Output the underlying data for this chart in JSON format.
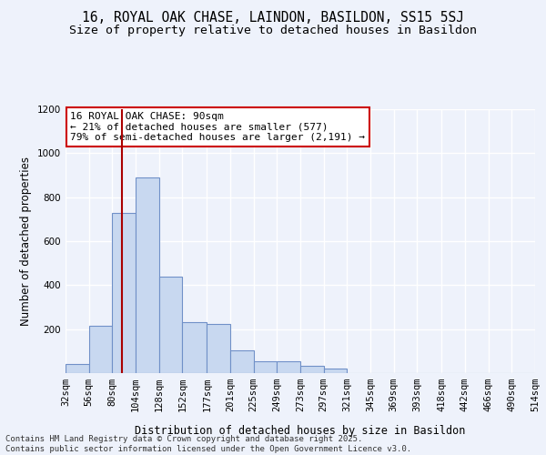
{
  "title1": "16, ROYAL OAK CHASE, LAINDON, BASILDON, SS15 5SJ",
  "title2": "Size of property relative to detached houses in Basildon",
  "xlabel": "Distribution of detached houses by size in Basildon",
  "ylabel": "Number of detached properties",
  "annotation_title": "16 ROYAL OAK CHASE: 90sqm",
  "annotation_line1": "← 21% of detached houses are smaller (577)",
  "annotation_line2": "79% of semi-detached houses are larger (2,191) →",
  "bin_edges": [
    32,
    56,
    80,
    104,
    128,
    152,
    177,
    201,
    225,
    249,
    273,
    297,
    321,
    345,
    369,
    393,
    418,
    442,
    466,
    490,
    514
  ],
  "bin_labels": [
    "32sqm",
    "56sqm",
    "80sqm",
    "104sqm",
    "128sqm",
    "152sqm",
    "177sqm",
    "201sqm",
    "225sqm",
    "249sqm",
    "273sqm",
    "297sqm",
    "321sqm",
    "345sqm",
    "369sqm",
    "393sqm",
    "418sqm",
    "442sqm",
    "466sqm",
    "490sqm",
    "514sqm"
  ],
  "bar_heights": [
    40,
    215,
    730,
    890,
    440,
    230,
    225,
    105,
    55,
    55,
    35,
    20,
    0,
    0,
    0,
    0,
    0,
    0,
    0,
    0
  ],
  "bar_color": "#c8d8f0",
  "bar_edge_color": "#7090c8",
  "vline_color": "#aa0000",
  "vline_x": 90,
  "ylim": [
    0,
    1200
  ],
  "yticks": [
    0,
    200,
    400,
    600,
    800,
    1000,
    1200
  ],
  "bg_color": "#eef2fb",
  "grid_color": "#ffffff",
  "annotation_box_color": "#ffffff",
  "annotation_box_edge": "#cc0000",
  "footer": "Contains HM Land Registry data © Crown copyright and database right 2025.\nContains public sector information licensed under the Open Government Licence v3.0.",
  "title_fontsize": 10.5,
  "subtitle_fontsize": 9.5,
  "axis_label_fontsize": 8.5,
  "tick_fontsize": 7.5,
  "annotation_fontsize": 8,
  "footer_fontsize": 6.5
}
